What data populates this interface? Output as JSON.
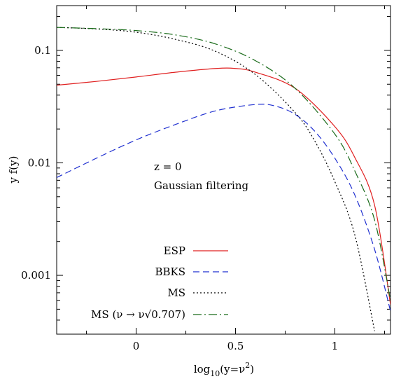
{
  "chart_data": {
    "type": "line",
    "xlabel_main": "log",
    "xlabel_sub": "10",
    "xlabel_tail": "(y=ν",
    "xlabel_sup": "2",
    "xlabel_end": ")",
    "ylabel": "y f(y)",
    "xlim": [
      -0.4,
      1.28
    ],
    "ylim": [
      0.0003,
      0.25
    ],
    "yscale": "log",
    "x_ticks": [
      {
        "value": 0,
        "label": "0"
      },
      {
        "value": 0.5,
        "label": "0.5"
      },
      {
        "value": 1,
        "label": "1"
      }
    ],
    "y_ticks": [
      {
        "value": 0.1,
        "label": "0.1"
      },
      {
        "value": 0.01,
        "label": "0.01"
      },
      {
        "value": 0.001,
        "label": "0.001"
      }
    ],
    "annotation_lines": [
      "z = 0",
      "Gaussian filtering"
    ],
    "legend_position": "bottom-left",
    "series": [
      {
        "name": "ESP",
        "color": "#e02020",
        "dash": "",
        "x": [
          -0.4,
          -0.2,
          0,
          0.2,
          0.4,
          0.5,
          0.6,
          0.8,
          1.0,
          1.1,
          1.2,
          1.28
        ],
        "values": [
          0.049,
          0.053,
          0.058,
          0.064,
          0.069,
          0.069,
          0.064,
          0.046,
          0.021,
          0.0112,
          0.0042,
          0.00055
        ]
      },
      {
        "name": "BBKS",
        "color": "#2030d0",
        "dash": "9 5",
        "x": [
          -0.4,
          -0.2,
          0,
          0.2,
          0.4,
          0.6,
          0.7,
          0.8,
          0.9,
          1.0,
          1.1,
          1.2,
          1.28
        ],
        "values": [
          0.0074,
          0.011,
          0.016,
          0.022,
          0.029,
          0.033,
          0.032,
          0.027,
          0.019,
          0.011,
          0.0052,
          0.0017,
          0.00048
        ]
      },
      {
        "name": "MS",
        "color": "#000000",
        "dash": "2 3",
        "x": [
          -0.4,
          -0.2,
          0,
          0.2,
          0.4,
          0.6,
          0.8,
          0.9,
          1.0,
          1.1,
          1.2
        ],
        "values": [
          0.16,
          0.155,
          0.145,
          0.125,
          0.098,
          0.061,
          0.028,
          0.0155,
          0.0068,
          0.0023,
          0.00032
        ]
      },
      {
        "name": "MS (ν → ν√0.707)",
        "color": "#1a6b1a",
        "dash": "12 4 2 4",
        "x": [
          -0.4,
          -0.2,
          0,
          0.2,
          0.4,
          0.6,
          0.8,
          1.0,
          1.1,
          1.2,
          1.28
        ],
        "values": [
          0.16,
          0.156,
          0.15,
          0.137,
          0.114,
          0.081,
          0.046,
          0.018,
          0.0085,
          0.0031,
          0.0006
        ]
      }
    ]
  }
}
